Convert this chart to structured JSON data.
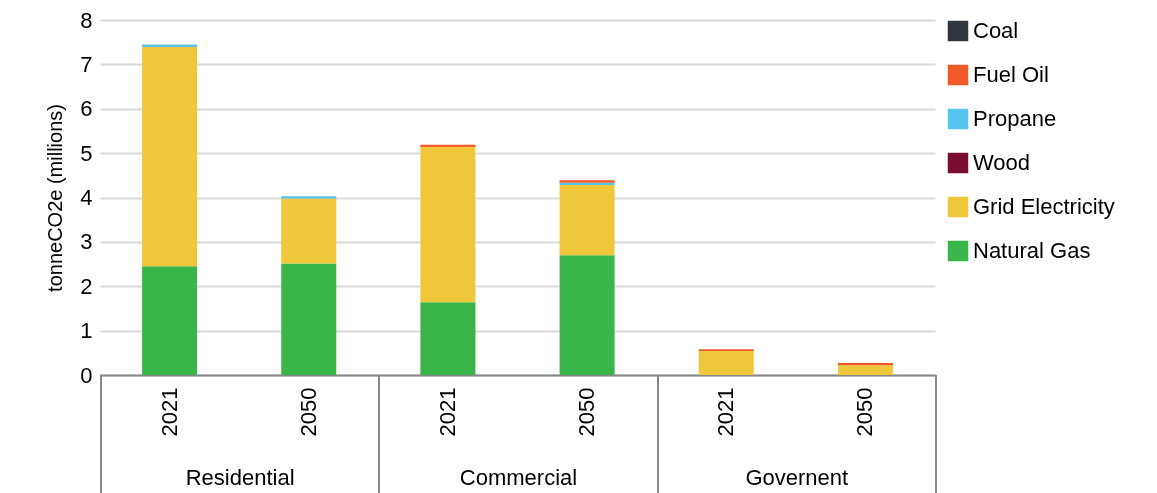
{
  "chart_data": {
    "type": "bar",
    "stacked": true,
    "ylabel": "tonneCO2e (millions)",
    "categories": [
      "2021",
      "2050",
      "2021",
      "2050",
      "2021",
      "2050"
    ],
    "annotations": [
      "Residential",
      "Commercial",
      "Governent"
    ],
    "ylim": [
      0,
      8
    ],
    "yticks": [
      0,
      1,
      2,
      3,
      4,
      5,
      6,
      7,
      8
    ],
    "grid": "y",
    "legend": "right",
    "series": [
      {
        "name": "Natural Gas",
        "color": "#39b54a",
        "values": [
          2.45,
          2.51,
          1.64,
          2.7,
          0,
          0
        ]
      },
      {
        "name": "Grid Electricity",
        "color": "#efc73a",
        "values": [
          4.94,
          1.47,
          3.5,
          1.58,
          0.54,
          0.22
        ]
      },
      {
        "name": "Wood",
        "color": "#7a0c2e",
        "values": [
          0,
          0,
          0,
          0,
          0,
          0
        ]
      },
      {
        "name": "Propane",
        "color": "#56c5ee",
        "values": [
          0.06,
          0.05,
          0,
          0.05,
          0,
          0
        ]
      },
      {
        "name": "Fuel Oil",
        "color": "#f15a29",
        "values": [
          0,
          0,
          0.05,
          0.06,
          0.04,
          0.05
        ]
      },
      {
        "name": "Coal",
        "color": "#2f3640",
        "values": [
          0,
          0,
          0,
          0,
          0,
          0
        ]
      }
    ]
  }
}
